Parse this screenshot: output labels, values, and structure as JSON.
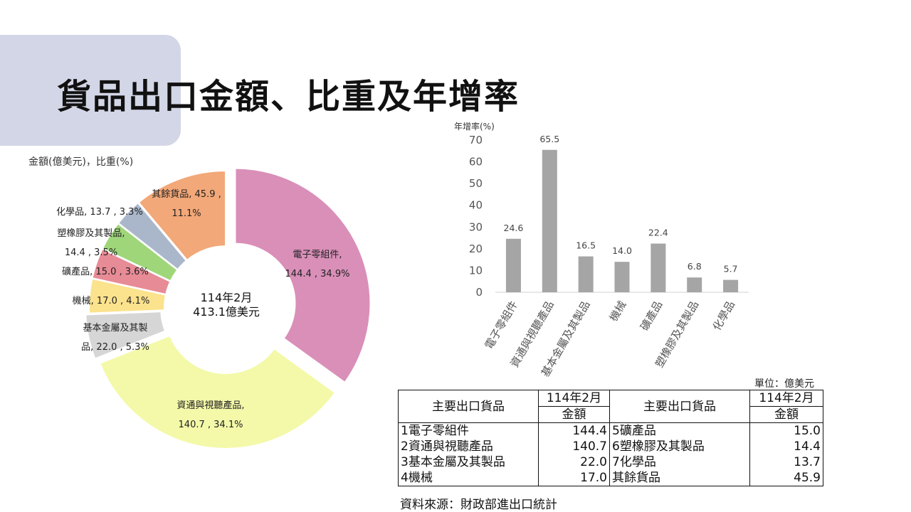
{
  "slide": {
    "title": "貨品出口金額、比重及年增率",
    "source": "資料來源：財政部進出口統計"
  },
  "chart_data": [
    {
      "type": "pie",
      "subtype": "donut",
      "caption": "金額(億美元)，比重(%)",
      "center_line1": "114年2月",
      "center_line2": "413.1億美元",
      "slices": [
        {
          "label": "電子零組件,",
          "value": 144.4,
          "share": 34.9,
          "label_line2": "144.4 , 34.9%",
          "color": "#d98fb8"
        },
        {
          "label": "資通與視聽產品,",
          "value": 140.7,
          "share": 34.1,
          "label_line2": "140.7 , 34.1%",
          "color": "#f3f9a8"
        },
        {
          "label": "基本金屬及其製",
          "value": 22.0,
          "share": 5.3,
          "label_line2": "品, 22.0 , 5.3%",
          "color": "#d6d6d6"
        },
        {
          "label": "機械, 17.0 , 4.1%",
          "value": 17.0,
          "share": 4.1,
          "label_line2": "",
          "color": "#fbe28d"
        },
        {
          "label": "礦產品, 15.0 , 3.6%",
          "value": 15.0,
          "share": 3.6,
          "label_line2": "",
          "color": "#e78b96"
        },
        {
          "label": "塑橡膠及其製品,",
          "value": 14.4,
          "share": 3.5,
          "label_line2": "14.4 , 3.5%",
          "color": "#9fd67a"
        },
        {
          "label": "化學品, 13.7 , 3.3%",
          "value": 13.7,
          "share": 3.3,
          "label_line2": "",
          "color": "#aab7cb"
        },
        {
          "label": "其餘貨品, 45.9 ,",
          "value": 45.9,
          "share": 11.1,
          "label_line2": "11.1%",
          "color": "#f2a878"
        }
      ]
    },
    {
      "type": "bar",
      "ylabel": "年增率(%)",
      "ylim": [
        0,
        70
      ],
      "yticks": [
        0,
        10,
        20,
        30,
        40,
        50,
        60,
        70
      ],
      "categories": [
        "電子零組件",
        "資通與視聽產品",
        "基本金屬及其製品",
        "機械",
        "礦產品",
        "塑橡膠及其製品",
        "化學品"
      ],
      "values": [
        24.6,
        65.5,
        16.5,
        14.0,
        22.4,
        6.8,
        5.7
      ],
      "value_labels": [
        "24.6",
        "65.5",
        "16.5",
        "14.0",
        "22.4",
        "6.8",
        "5.7"
      ],
      "bar_color": "#a5a5a5",
      "grid": false
    }
  ],
  "table": {
    "unit": "單位：億美元",
    "header_item": "主要出口貨品",
    "header_month": "114年2月",
    "header_amount": "金額",
    "left_rows": [
      {
        "item": "1電子零組件",
        "amount": "144.4"
      },
      {
        "item": "2資通與視聽產品",
        "amount": "140.7"
      },
      {
        "item": "3基本金屬及其製品",
        "amount": "22.0"
      },
      {
        "item": "4機械",
        "amount": "17.0"
      }
    ],
    "right_rows": [
      {
        "item": "5礦產品",
        "amount": "15.0"
      },
      {
        "item": "6塑橡膠及其製品",
        "amount": "14.4"
      },
      {
        "item": "7化學品",
        "amount": "13.7"
      },
      {
        "item": "其餘貨品",
        "amount": "45.9"
      }
    ]
  }
}
